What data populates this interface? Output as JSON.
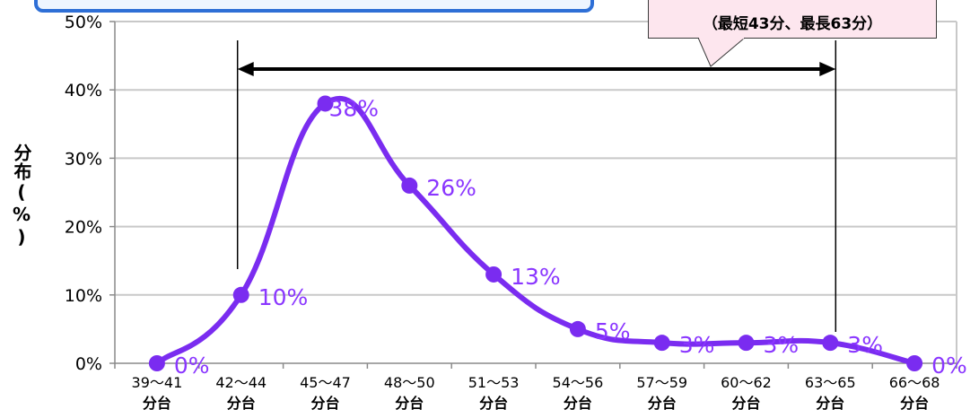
{
  "chart_data": {
    "type": "line",
    "title": "",
    "xlabel": "",
    "ylabel": "分布(%)",
    "categories": [
      "39〜41\n分台",
      "42〜44\n分台",
      "45〜47\n分台",
      "48〜50\n分台",
      "51〜53\n分台",
      "54〜56\n分台",
      "57〜59\n分台",
      "60〜62\n分台",
      "63〜65\n分台",
      "66〜68\n分台"
    ],
    "values": [
      0,
      10,
      38,
      26,
      13,
      5,
      3,
      3,
      3,
      0
    ],
    "data_labels": [
      "0%",
      "10%",
      "38%",
      "26%",
      "13%",
      "5%",
      "3%",
      "3%",
      "3%",
      "0%"
    ],
    "yticks": [
      "0%",
      "10%",
      "20%",
      "30%",
      "40%",
      "50%"
    ],
    "ylim": [
      0,
      50
    ],
    "grid": "horizontal",
    "line_color": "#7a2cf0",
    "label_color": "#8a36ff",
    "range_arrow": {
      "from": "42〜44\n分台",
      "to": "63〜65\n分台"
    },
    "annotation": "（最短43分、最長63分）"
  },
  "colors": {
    "header_blue": "#2e6fd6",
    "callout_fill": "#fde6ee",
    "grid": "#c8c8c8"
  }
}
